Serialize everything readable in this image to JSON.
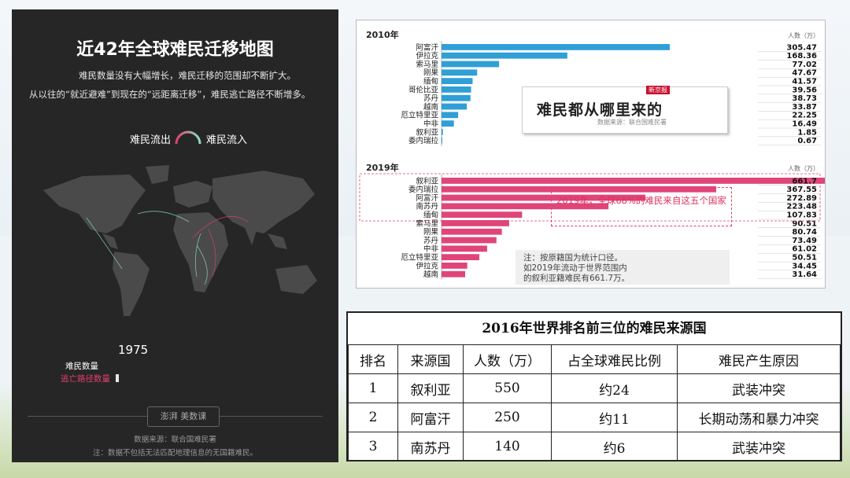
{
  "map": {
    "title": "近42年全球难民迁移地图",
    "subtitle1": "难民数量没有大幅增长，难民迁移的范围却不断扩大。",
    "subtitle2": "从以往的“就近避难”到现在的“远距离迁移”，难民逃亡路径不断增多。",
    "legend_out": "难民流出",
    "legend_in": "难民流入",
    "year": "1975",
    "count_label": "难民数量",
    "route_label": "逃亡路径数量",
    "brand": "澎湃 美数课",
    "source": "数据来源：联合国难民署",
    "note": "注：数据不包括无法匹配地理信息的无国籍难民。",
    "colors": {
      "outflow": "#e0406a",
      "inflow": "#8be0c0",
      "panel": "#262626"
    }
  },
  "headline": {
    "title": "难民都从哪里来的",
    "tag": "新京报",
    "sub": "数据来源：联合国难民署"
  },
  "callout": "2019年，全球68%的难民来自这五个国家",
  "note_text": [
    "注：按原籍国为统计口径。",
    "如2019年流动于世界范围内",
    "的叙利亚籍难民有661.7万。"
  ],
  "chart_data": [
    {
      "type": "bar",
      "title": "2010年",
      "unit_label": "人数（万）",
      "color": "#2f9fd6",
      "categories": [
        "阿富汗",
        "伊拉克",
        "索马里",
        "刚果",
        "缅甸",
        "哥伦比亚",
        "苏丹",
        "越南",
        "厄立特里亚",
        "中非",
        "叙利亚",
        "委内瑞拉"
      ],
      "values": [
        305.47,
        168.36,
        77.02,
        47.67,
        41.57,
        39.56,
        38.73,
        33.87,
        22.25,
        16.49,
        1.85,
        0.67
      ],
      "value_labels": [
        "305.47",
        "168.36",
        "77.02",
        "47.67",
        "41.57",
        "39.56",
        "38.73",
        "33.87",
        "22.25",
        "16.49",
        "1.85",
        "0.67"
      ]
    },
    {
      "type": "bar",
      "title": "2019年",
      "unit_label": "人数（万）",
      "color": "#e0457a",
      "categories": [
        "叙利亚",
        "委内瑞拉",
        "阿富汗",
        "南苏丹",
        "缅甸",
        "索马里",
        "刚果",
        "苏丹",
        "中非",
        "厄立特里亚",
        "伊拉克",
        "越南"
      ],
      "values": [
        661.7,
        367.55,
        272.89,
        223.48,
        107.83,
        90.51,
        80.74,
        73.49,
        61.02,
        50.51,
        34.45,
        31.64
      ],
      "value_labels": [
        "661.7",
        "367.55",
        "272.89",
        "223.48",
        "107.83",
        "90.51",
        "80.74",
        "73.49",
        "61.02",
        "50.51",
        "34.45",
        "31.64"
      ]
    }
  ],
  "table": {
    "title": "2016年世界排名前三位的难民来源国",
    "headers": [
      "排名",
      "来源国",
      "人数（万）",
      "占全球难民比例",
      "难民产生原因"
    ],
    "rows": [
      [
        "1",
        "叙利亚",
        "550",
        "约24",
        "武装冲突"
      ],
      [
        "2",
        "阿富汗",
        "250",
        "约11",
        "长期动荡和暴力冲突"
      ],
      [
        "3",
        "南苏丹",
        "140",
        "约6",
        "武装冲突"
      ]
    ]
  }
}
